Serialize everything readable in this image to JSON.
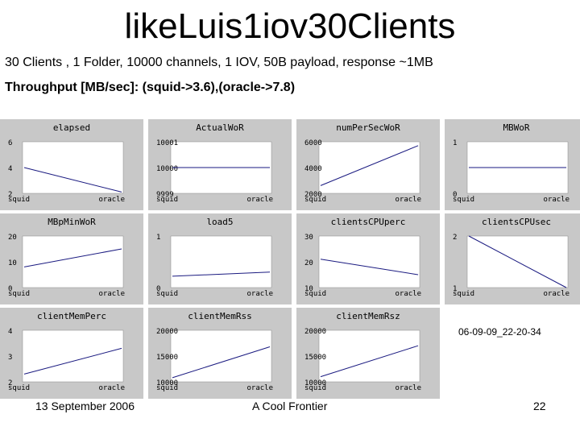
{
  "slide": {
    "title": "likeLuis1iov30Clients",
    "subtitle": "30 Clients , 1 Folder, 10000 channels, 1 IOV, 50B payload, response ~1MB",
    "throughput": "Throughput [MB/sec]: (squid->3.6),(oracle->7.8)",
    "stamp": "06-09-09_22-20-34",
    "footer_date": "13 September 2006",
    "footer_center": "A Cool Frontier",
    "footer_page": "22"
  },
  "colors": {
    "panel_bg": "#c8c8c8",
    "plot_bg": "#ffffff",
    "line": "#1a1a80",
    "text": "#000000"
  },
  "chart_data": [
    {
      "type": "line",
      "title": "elapsed",
      "categories": [
        "squid",
        "oracle"
      ],
      "yticks": [
        "6",
        "4",
        "2"
      ],
      "ylim": [
        2,
        6
      ],
      "values": [
        4,
        2.1
      ]
    },
    {
      "type": "line",
      "title": "ActualWoR",
      "categories": [
        "squid",
        "oracle"
      ],
      "yticks": [
        "10001",
        "10000",
        "9999"
      ],
      "ylim": [
        9999,
        10001
      ],
      "values": [
        10000,
        10000
      ]
    },
    {
      "type": "line",
      "title": "numPerSecWoR",
      "categories": [
        "squid",
        "oracle"
      ],
      "yticks": [
        "6000",
        "4000",
        "2000"
      ],
      "ylim": [
        2000,
        6000
      ],
      "values": [
        2600,
        5700
      ]
    },
    {
      "type": "line",
      "title": "MBWoR",
      "categories": [
        "squid",
        "oracle"
      ],
      "yticks": [
        "1",
        "0"
      ],
      "ylim": [
        0,
        1
      ],
      "values": [
        0.5,
        0.5
      ]
    },
    {
      "type": "line",
      "title": "MBpMinWoR",
      "categories": [
        "squid",
        "oracle"
      ],
      "yticks": [
        "20",
        "10",
        "0"
      ],
      "ylim": [
        0,
        20
      ],
      "values": [
        8,
        15
      ]
    },
    {
      "type": "line",
      "title": "load5",
      "categories": [
        "squid",
        "oracle"
      ],
      "yticks": [
        "1",
        "0"
      ],
      "ylim": [
        0,
        1
      ],
      "values": [
        0.22,
        0.3
      ]
    },
    {
      "type": "line",
      "title": "clientsCPUperc",
      "categories": [
        "squid",
        "oracle"
      ],
      "yticks": [
        "30",
        "20",
        "10"
      ],
      "ylim": [
        10,
        30
      ],
      "values": [
        21,
        15
      ]
    },
    {
      "type": "line",
      "title": "clientsCPUsec",
      "categories": [
        "squid",
        "oracle"
      ],
      "yticks": [
        "2",
        "1"
      ],
      "ylim": [
        1,
        2
      ],
      "values": [
        2,
        1
      ]
    },
    {
      "type": "line",
      "title": "clientMemPerc",
      "categories": [
        "squid",
        "oracle"
      ],
      "yticks": [
        "4",
        "3",
        "2"
      ],
      "ylim": [
        2,
        4
      ],
      "values": [
        2.3,
        3.3
      ]
    },
    {
      "type": "line",
      "title": "clientMemRss",
      "categories": [
        "squid",
        "oracle"
      ],
      "yticks": [
        "20000",
        "15000",
        "10000"
      ],
      "ylim": [
        10000,
        20000
      ],
      "values": [
        10800,
        16800
      ]
    },
    {
      "type": "line",
      "title": "clientMemRsz",
      "categories": [
        "squid",
        "oracle"
      ],
      "yticks": [
        "20000",
        "15000",
        "10000"
      ],
      "ylim": [
        10000,
        20000
      ],
      "values": [
        11000,
        17000
      ]
    }
  ]
}
